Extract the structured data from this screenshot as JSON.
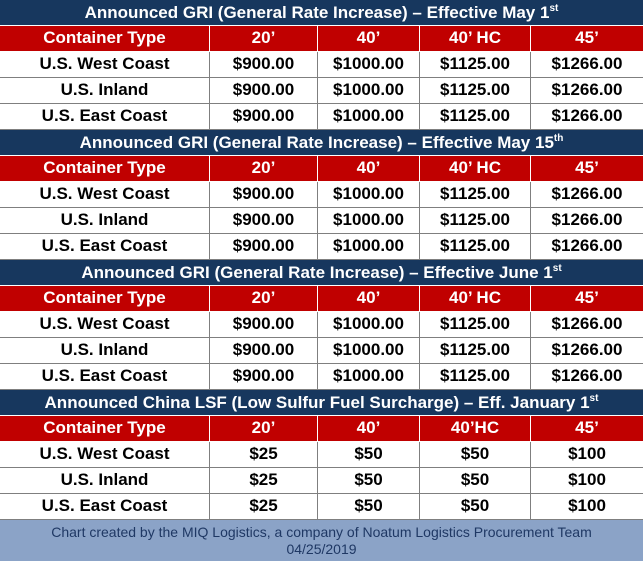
{
  "sections": [
    {
      "title": "Announced GRI (General Rate Increase) – Effective May 1",
      "sup": "st",
      "headers": [
        "Container Type",
        "20’",
        "40’",
        "40’ HC",
        "45’"
      ],
      "rows": [
        [
          "U.S. West Coast",
          "$900.00",
          "$1000.00",
          "$1125.00",
          "$1266.00"
        ],
        [
          "U.S. Inland",
          "$900.00",
          "$1000.00",
          "$1125.00",
          "$1266.00"
        ],
        [
          "U.S. East Coast",
          "$900.00",
          "$1000.00",
          "$1125.00",
          "$1266.00"
        ]
      ]
    },
    {
      "title": "Announced GRI (General Rate Increase) – Effective May 15",
      "sup": "th",
      "headers": [
        "Container Type",
        "20’",
        "40’",
        "40’ HC",
        "45’"
      ],
      "rows": [
        [
          "U.S. West Coast",
          "$900.00",
          "$1000.00",
          "$1125.00",
          "$1266.00"
        ],
        [
          "U.S. Inland",
          "$900.00",
          "$1000.00",
          "$1125.00",
          "$1266.00"
        ],
        [
          "U.S. East Coast",
          "$900.00",
          "$1000.00",
          "$1125.00",
          "$1266.00"
        ]
      ]
    },
    {
      "title": "Announced GRI (General Rate Increase) – Effective June 1",
      "sup": "st",
      "headers": [
        "Container Type",
        "20’",
        "40’",
        "40’ HC",
        "45’"
      ],
      "rows": [
        [
          "U.S. West Coast",
          "$900.00",
          "$1000.00",
          "$1125.00",
          "$1266.00"
        ],
        [
          "U.S. Inland",
          "$900.00",
          "$1000.00",
          "$1125.00",
          "$1266.00"
        ],
        [
          "U.S. East Coast",
          "$900.00",
          "$1000.00",
          "$1125.00",
          "$1266.00"
        ]
      ]
    },
    {
      "title": "Announced China LSF (Low Sulfur Fuel Surcharge) – Eff. January 1",
      "sup": "st",
      "headers": [
        "Container Type",
        "20’",
        "40’",
        "40’HC",
        "45’"
      ],
      "rows": [
        [
          "U.S. West Coast",
          "$25",
          "$50",
          "$50",
          "$100"
        ],
        [
          "U.S. Inland",
          "$25",
          "$50",
          "$50",
          "$100"
        ],
        [
          "U.S. East Coast",
          "$25",
          "$50",
          "$50",
          "$100"
        ]
      ]
    }
  ],
  "footer": {
    "line1": "Chart created by the MIQ Logistics, a company of Noatum Logistics Procurement Team",
    "line2": "04/25/2019"
  },
  "colors": {
    "title_bg": "#17375e",
    "header_bg": "#c00000",
    "footer_bg": "#8ba3c7",
    "footer_text": "#1f3864"
  }
}
